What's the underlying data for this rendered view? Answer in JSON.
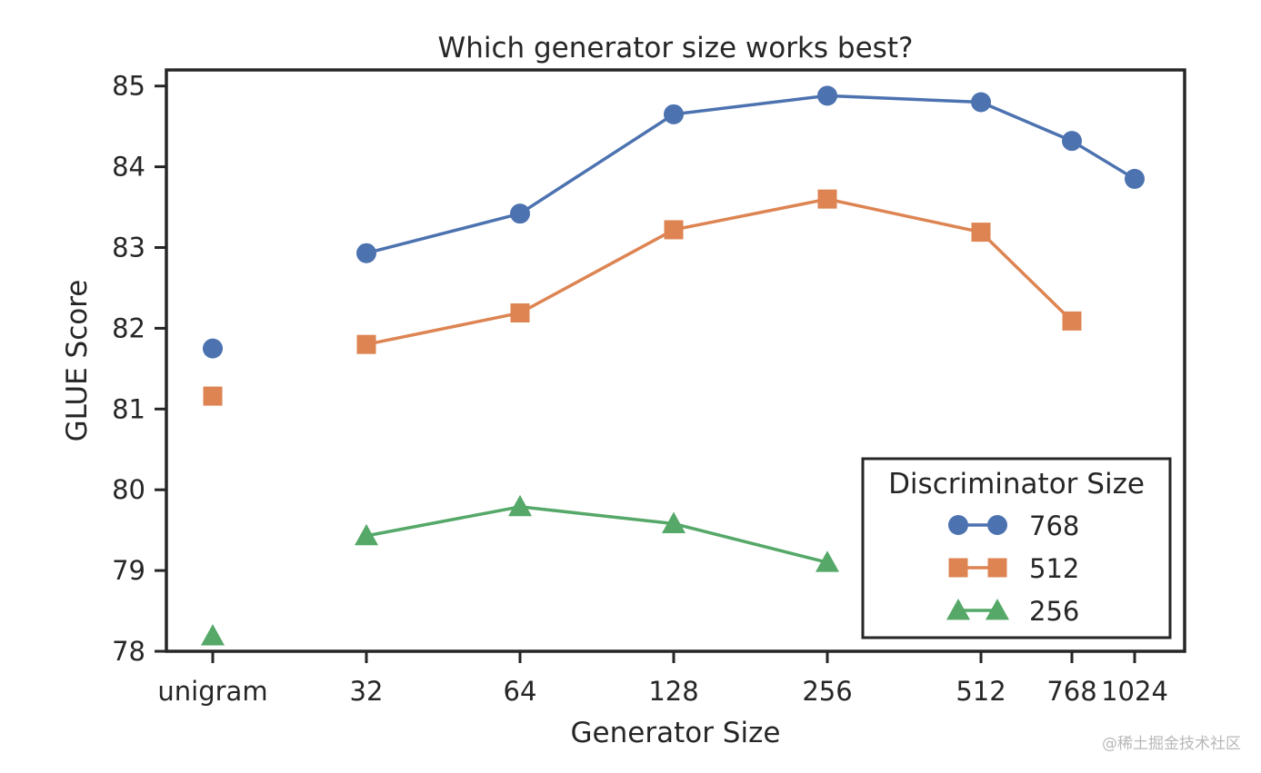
{
  "chart_data": {
    "type": "line",
    "title": "Which generator size works best?",
    "xlabel": "Generator Size",
    "ylabel": "GLUE Score",
    "categories": [
      "unigram",
      "32",
      "64",
      "128",
      "256",
      "512",
      "768",
      "1024"
    ],
    "ylim": [
      78,
      85.25
    ],
    "yticks": [
      "78",
      "79",
      "80",
      "81",
      "82",
      "83",
      "84",
      "85"
    ],
    "grid": false,
    "legend": {
      "title": "Discriminator Size",
      "placement": "lower-right"
    },
    "series": [
      {
        "name": "768",
        "marker": "circle",
        "color": "#4c72b0",
        "unigram": 81.75,
        "x": [
          "32",
          "64",
          "128",
          "256",
          "512",
          "768",
          "1024"
        ],
        "values": [
          82.93,
          83.42,
          84.65,
          84.88,
          84.8,
          84.32,
          83.85
        ]
      },
      {
        "name": "512",
        "marker": "square",
        "color": "#dd8452",
        "unigram": 81.16,
        "x": [
          "32",
          "64",
          "128",
          "256",
          "512",
          "768"
        ],
        "values": [
          81.8,
          82.19,
          83.22,
          83.6,
          83.19,
          82.09
        ]
      },
      {
        "name": "256",
        "marker": "triangle",
        "color": "#55a868",
        "unigram": 78.19,
        "x": [
          "32",
          "64",
          "128",
          "256"
        ],
        "values": [
          79.43,
          79.79,
          79.58,
          79.1
        ]
      }
    ]
  },
  "watermark": "@稀土掘金技术社区"
}
